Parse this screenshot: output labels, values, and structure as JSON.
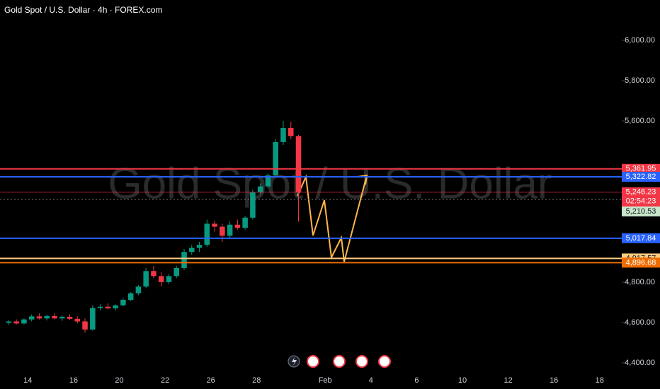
{
  "chart_data": {
    "type": "candlestick",
    "title": "Gold Spot / U.S. Dollar · 4h · FOREX.com",
    "watermark": "Gold Spot / U.S. Dollar",
    "categories": [
      null,
      "14",
      null,
      "16",
      null,
      "20",
      null,
      "22",
      null,
      "26",
      null,
      "28",
      null,
      null,
      "Feb",
      null,
      "4",
      null,
      "6",
      null,
      "10",
      null,
      "12",
      null,
      "16",
      null,
      "18",
      null
    ],
    "ohlc": [
      [
        [
          4598,
          4612,
          4588,
          4605
        ],
        [
          4605,
          4615,
          4590,
          4595
        ],
        [
          4595,
          4620,
          4590,
          4615
        ]
      ],
      [
        [
          4615,
          4640,
          4605,
          4630
        ],
        [
          4630,
          4645,
          4615,
          4620
        ],
        [
          4620,
          4638,
          4610,
          4632
        ]
      ],
      [
        [
          4632,
          4645,
          4615,
          4620
        ],
        [
          4620,
          4635,
          4608,
          4628
        ],
        [
          4628,
          4640,
          4612,
          4618
        ]
      ],
      [
        [
          4618,
          4630,
          4595,
          4605
        ],
        [
          4605,
          4620,
          4550,
          4565
        ],
        [
          4565,
          4685,
          4560,
          4672
        ]
      ],
      [
        [
          4672,
          4690,
          4660,
          4678
        ],
        [
          4678,
          4695,
          4665,
          4670
        ],
        [
          4670,
          4690,
          4660,
          4685
        ]
      ],
      [
        [
          4685,
          4720,
          4680,
          4712
        ],
        [
          4712,
          4750,
          4705,
          4745
        ],
        [
          4745,
          4785,
          4735,
          4778
        ]
      ],
      [
        [
          4778,
          4870,
          4770,
          4855
        ],
        [
          4855,
          4880,
          4820,
          4830
        ],
        [
          4830,
          4850,
          4780,
          4800
        ]
      ],
      [
        [
          4800,
          4840,
          4790,
          4830
        ],
        [
          4830,
          4880,
          4820,
          4870
        ],
        [
          4870,
          4965,
          4860,
          4950
        ]
      ],
      [
        [
          4950,
          4985,
          4935,
          4970
        ],
        [
          4970,
          5000,
          4950,
          4985
        ],
        [
          4985,
          5110,
          4975,
          5090
        ]
      ],
      [
        [
          5090,
          5105,
          5050,
          5075
        ],
        [
          5075,
          5090,
          5000,
          5030
        ],
        [
          5030,
          5100,
          5015,
          5085
        ]
      ],
      [
        [
          5085,
          5110,
          5060,
          5070
        ],
        [
          5070,
          5130,
          5060,
          5120
        ],
        [
          5120,
          5260,
          5110,
          5245
        ]
      ],
      [
        [
          5245,
          5290,
          5235,
          5275
        ],
        [
          5275,
          5340,
          5265,
          5330
        ],
        [
          5330,
          5510,
          5320,
          5495
        ]
      ],
      [
        [
          5495,
          5600,
          5480,
          5565
        ],
        [
          5565,
          5595,
          5510,
          5525
        ],
        [
          5525,
          5530,
          5100,
          5246.23
        ]
      ]
    ],
    "up_color": "#089981",
    "down_color": "#f23645",
    "ylim": [
      4340,
      6200
    ],
    "yticks": [
      {
        "value": 4400,
        "label": "4,400.00"
      },
      {
        "value": 4600,
        "label": "4,600.00"
      },
      {
        "value": 4800,
        "label": "4,800.00"
      },
      {
        "value": 5600,
        "label": "5,600.00"
      },
      {
        "value": 5800,
        "label": "5,800.00"
      },
      {
        "value": 6000,
        "label": "6,000.00"
      }
    ],
    "levels": [
      {
        "value": 5361.95,
        "label": "5,361.95",
        "color": "#f23645",
        "text_color": "#ffffff"
      },
      {
        "value": 5322.82,
        "label": "5,322.82",
        "color": "#2962ff",
        "text_color": "#ffffff"
      },
      {
        "value": 5017.84,
        "label": "5,017.84",
        "color": "#2962ff",
        "text_color": "#ffffff"
      },
      {
        "value": 4917.57,
        "label": "4,917.57",
        "color": "#ffcc80",
        "text_color": "#131722"
      },
      {
        "value": 4896.68,
        "label": "4,896.68",
        "color": "#ef6c00",
        "text_color": "#ffffff"
      }
    ],
    "last_price": {
      "value": 5246.23,
      "label": "5,246.23",
      "countdown": "02:54:23",
      "color": "#f23645"
    },
    "prev_close": {
      "value": 5210.53,
      "label": "5,210.53",
      "color": "#c8e6c9"
    }
  }
}
